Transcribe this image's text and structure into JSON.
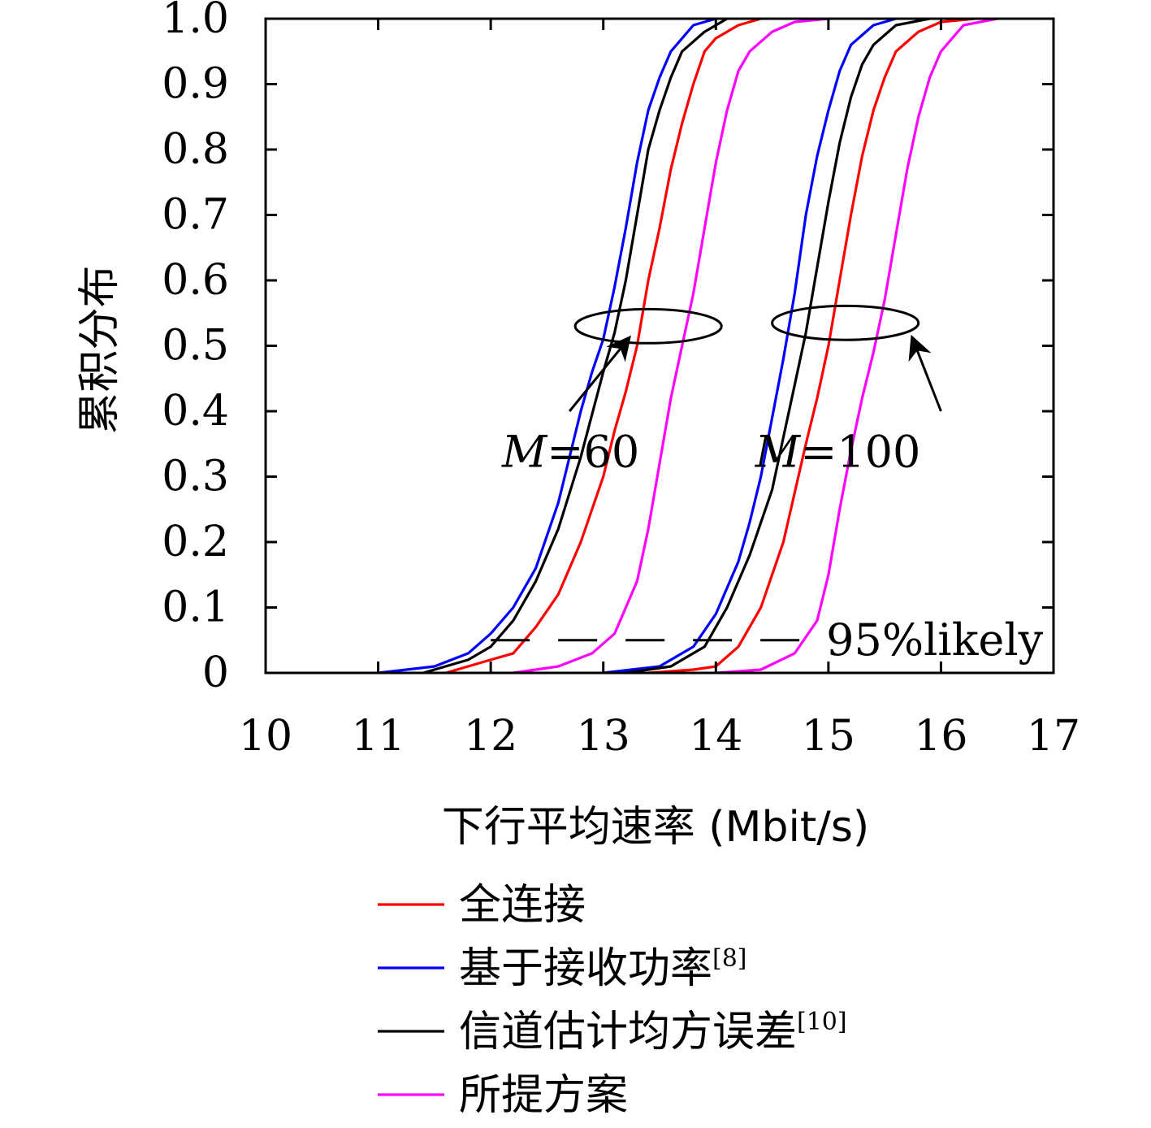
{
  "chart_data": {
    "type": "line",
    "xlabel": "下行平均速率 (Mbit/s)",
    "ylabel": "累积分布",
    "xlim": [
      10,
      17
    ],
    "ylim": [
      0,
      1
    ],
    "x_ticks": [
      "10",
      "11",
      "12",
      "13",
      "14",
      "15",
      "16",
      "17"
    ],
    "y_ticks": [
      "0",
      "0.1",
      "0.2",
      "0.3",
      "0.4",
      "0.5",
      "0.6",
      "0.7",
      "0.8",
      "0.9",
      "1.0"
    ],
    "grid": false,
    "legend_position": "bottom",
    "series": [
      {
        "name": "全连接",
        "superscript": "",
        "color": "#ff0000",
        "group": "M=60",
        "points": [
          [
            11.6,
            0
          ],
          [
            12.0,
            0.02
          ],
          [
            12.2,
            0.03
          ],
          [
            12.4,
            0.07
          ],
          [
            12.6,
            0.12
          ],
          [
            12.8,
            0.2
          ],
          [
            13.0,
            0.3
          ],
          [
            13.1,
            0.37
          ],
          [
            13.2,
            0.43
          ],
          [
            13.3,
            0.5
          ],
          [
            13.4,
            0.6
          ],
          [
            13.5,
            0.68
          ],
          [
            13.6,
            0.77
          ],
          [
            13.7,
            0.84
          ],
          [
            13.8,
            0.9
          ],
          [
            13.9,
            0.95
          ],
          [
            14.0,
            0.97
          ],
          [
            14.2,
            0.99
          ],
          [
            14.4,
            1.0
          ]
        ]
      },
      {
        "name": "基于接收功率",
        "superscript": "[8]",
        "color": "#0000ff",
        "group": "M=60",
        "points": [
          [
            11.0,
            0
          ],
          [
            11.5,
            0.01
          ],
          [
            11.8,
            0.03
          ],
          [
            12.0,
            0.06
          ],
          [
            12.2,
            0.1
          ],
          [
            12.4,
            0.16
          ],
          [
            12.6,
            0.26
          ],
          [
            12.8,
            0.4
          ],
          [
            12.9,
            0.46
          ],
          [
            13.0,
            0.51
          ],
          [
            13.1,
            0.59
          ],
          [
            13.2,
            0.68
          ],
          [
            13.3,
            0.78
          ],
          [
            13.4,
            0.86
          ],
          [
            13.5,
            0.91
          ],
          [
            13.6,
            0.95
          ],
          [
            13.8,
            0.99
          ],
          [
            14.0,
            1.0
          ]
        ]
      },
      {
        "name": "信道估计均方误差",
        "superscript": "[10]",
        "color": "#000000",
        "group": "M=60",
        "points": [
          [
            11.4,
            0
          ],
          [
            11.8,
            0.02
          ],
          [
            12.0,
            0.04
          ],
          [
            12.2,
            0.08
          ],
          [
            12.4,
            0.14
          ],
          [
            12.6,
            0.22
          ],
          [
            12.8,
            0.33
          ],
          [
            13.0,
            0.46
          ],
          [
            13.1,
            0.52
          ],
          [
            13.2,
            0.6
          ],
          [
            13.3,
            0.7
          ],
          [
            13.4,
            0.8
          ],
          [
            13.5,
            0.86
          ],
          [
            13.6,
            0.91
          ],
          [
            13.7,
            0.95
          ],
          [
            13.9,
            0.98
          ],
          [
            14.1,
            1.0
          ]
        ]
      },
      {
        "name": "所提方案",
        "superscript": "",
        "color": "#ff00ff",
        "group": "M=60",
        "points": [
          [
            12.2,
            0
          ],
          [
            12.6,
            0.01
          ],
          [
            12.9,
            0.03
          ],
          [
            13.1,
            0.06
          ],
          [
            13.3,
            0.14
          ],
          [
            13.4,
            0.22
          ],
          [
            13.5,
            0.32
          ],
          [
            13.6,
            0.42
          ],
          [
            13.7,
            0.5
          ],
          [
            13.8,
            0.58
          ],
          [
            13.9,
            0.68
          ],
          [
            14.0,
            0.78
          ],
          [
            14.1,
            0.86
          ],
          [
            14.2,
            0.92
          ],
          [
            14.3,
            0.95
          ],
          [
            14.5,
            0.98
          ],
          [
            14.7,
            0.995
          ],
          [
            15.0,
            1.0
          ]
        ]
      },
      {
        "name": "全连接",
        "superscript": "",
        "color": "#ff0000",
        "group": "M=100",
        "points": [
          [
            13.4,
            0
          ],
          [
            13.8,
            0.005
          ],
          [
            14.0,
            0.01
          ],
          [
            14.2,
            0.04
          ],
          [
            14.4,
            0.1
          ],
          [
            14.6,
            0.2
          ],
          [
            14.8,
            0.35
          ],
          [
            14.9,
            0.42
          ],
          [
            15.0,
            0.5
          ],
          [
            15.1,
            0.6
          ],
          [
            15.2,
            0.7
          ],
          [
            15.3,
            0.79
          ],
          [
            15.4,
            0.86
          ],
          [
            15.5,
            0.91
          ],
          [
            15.6,
            0.95
          ],
          [
            15.8,
            0.98
          ],
          [
            16.0,
            0.995
          ],
          [
            16.3,
            1.0
          ]
        ]
      },
      {
        "name": "基于接收功率",
        "superscript": "[8]",
        "color": "#0000ff",
        "group": "M=100",
        "points": [
          [
            13.0,
            0
          ],
          [
            13.5,
            0.01
          ],
          [
            13.8,
            0.04
          ],
          [
            14.0,
            0.09
          ],
          [
            14.2,
            0.17
          ],
          [
            14.3,
            0.23
          ],
          [
            14.4,
            0.3
          ],
          [
            14.5,
            0.39
          ],
          [
            14.6,
            0.48
          ],
          [
            14.7,
            0.58
          ],
          [
            14.8,
            0.7
          ],
          [
            14.9,
            0.79
          ],
          [
            15.0,
            0.86
          ],
          [
            15.1,
            0.92
          ],
          [
            15.2,
            0.96
          ],
          [
            15.4,
            0.99
          ],
          [
            15.6,
            1.0
          ]
        ]
      },
      {
        "name": "信道估计均方误差",
        "superscript": "[10]",
        "color": "#000000",
        "group": "M=100",
        "points": [
          [
            13.2,
            0
          ],
          [
            13.6,
            0.01
          ],
          [
            13.9,
            0.04
          ],
          [
            14.1,
            0.1
          ],
          [
            14.3,
            0.18
          ],
          [
            14.5,
            0.28
          ],
          [
            14.6,
            0.36
          ],
          [
            14.7,
            0.44
          ],
          [
            14.8,
            0.52
          ],
          [
            14.9,
            0.62
          ],
          [
            15.0,
            0.72
          ],
          [
            15.1,
            0.81
          ],
          [
            15.2,
            0.88
          ],
          [
            15.3,
            0.93
          ],
          [
            15.4,
            0.96
          ],
          [
            15.6,
            0.99
          ],
          [
            15.9,
            1.0
          ]
        ]
      },
      {
        "name": "所提方案",
        "superscript": "",
        "color": "#ff00ff",
        "group": "M=100",
        "points": [
          [
            14.0,
            0
          ],
          [
            14.4,
            0.005
          ],
          [
            14.7,
            0.03
          ],
          [
            14.9,
            0.08
          ],
          [
            15.0,
            0.15
          ],
          [
            15.1,
            0.25
          ],
          [
            15.2,
            0.34
          ],
          [
            15.3,
            0.42
          ],
          [
            15.4,
            0.49
          ],
          [
            15.5,
            0.57
          ],
          [
            15.6,
            0.67
          ],
          [
            15.7,
            0.77
          ],
          [
            15.8,
            0.85
          ],
          [
            15.9,
            0.91
          ],
          [
            16.0,
            0.95
          ],
          [
            16.2,
            0.99
          ],
          [
            16.5,
            1.0
          ]
        ]
      }
    ],
    "reference_line": {
      "y": 0.05,
      "label": "95%likely",
      "style": "dashed",
      "x_from": 12.0,
      "x_to": 14.8
    },
    "annotations": [
      {
        "label_italic": "M",
        "label_rest": "=60",
        "ellipse_center": [
          13.4,
          0.53
        ],
        "ellipse_radius": [
          0.65,
          0.026
        ],
        "arrow_from": [
          12.7,
          0.4
        ],
        "arrow_to": [
          13.22,
          0.51
        ],
        "label_at": [
          12.1,
          0.34
        ]
      },
      {
        "label_italic": "M",
        "label_rest": "=100",
        "ellipse_center": [
          15.15,
          0.535
        ],
        "ellipse_radius": [
          0.65,
          0.026
        ],
        "arrow_from": [
          16.0,
          0.4
        ],
        "arrow_to": [
          15.75,
          0.51
        ],
        "label_at": [
          14.35,
          0.34
        ]
      }
    ]
  }
}
